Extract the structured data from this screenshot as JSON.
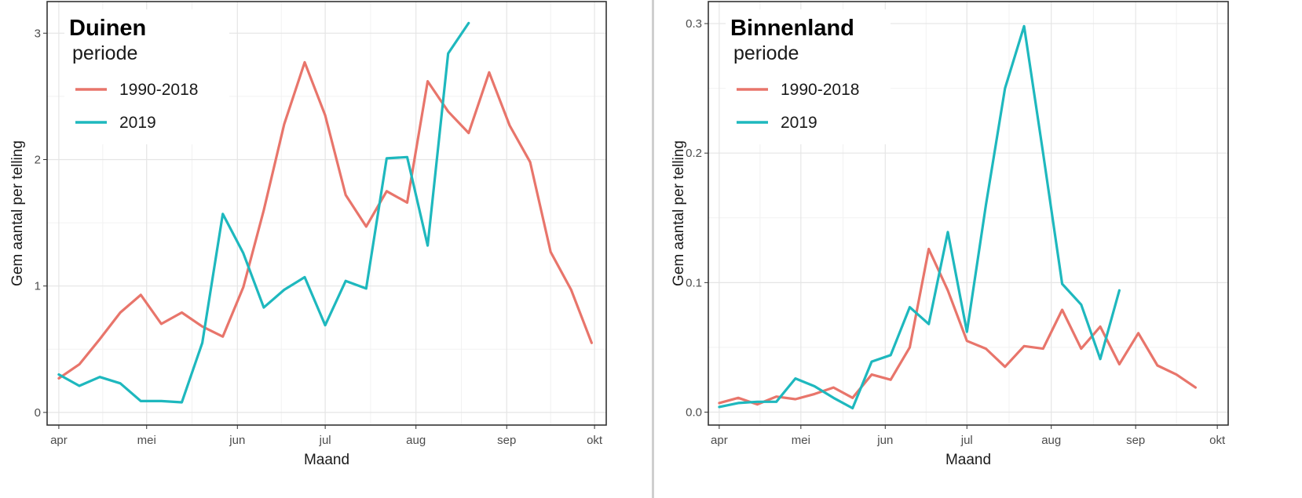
{
  "colors": {
    "series_1990_2018": "#E8756B",
    "series_2019": "#1EB8BE"
  },
  "chart_data": [
    {
      "type": "line",
      "title": "Duinen",
      "xlabel": "Maand",
      "ylabel": "Gem aantal per telling",
      "x_ticks": [
        "apr",
        "mei",
        "jun",
        "jul",
        "aug",
        "sep",
        "okt"
      ],
      "y_ticks": [
        "0",
        "1",
        "2",
        "3"
      ],
      "xlim": [
        "2019-03-28",
        "2019-10-05"
      ],
      "ylim": [
        -0.1,
        3.25
      ],
      "grid": true,
      "legend": {
        "title": "periode",
        "placement": "top-left"
      },
      "series": [
        {
          "name": "1990-2018",
          "points": [
            [
              "2019-04-01",
              0.27
            ],
            [
              "2019-04-08",
              0.38
            ],
            [
              "2019-04-15",
              0.58
            ],
            [
              "2019-04-22",
              0.79
            ],
            [
              "2019-04-29",
              0.93
            ],
            [
              "2019-05-06",
              0.7
            ],
            [
              "2019-05-13",
              0.79
            ],
            [
              "2019-05-20",
              0.68
            ],
            [
              "2019-05-27",
              0.6
            ],
            [
              "2019-06-03",
              0.99
            ],
            [
              "2019-06-10",
              1.6
            ],
            [
              "2019-06-17",
              2.28
            ],
            [
              "2019-06-24",
              2.77
            ],
            [
              "2019-07-01",
              2.35
            ],
            [
              "2019-07-08",
              1.72
            ],
            [
              "2019-07-15",
              1.47
            ],
            [
              "2019-07-22",
              1.75
            ],
            [
              "2019-07-29",
              1.66
            ],
            [
              "2019-08-05",
              2.62
            ],
            [
              "2019-08-12",
              2.38
            ],
            [
              "2019-08-19",
              2.21
            ],
            [
              "2019-08-26",
              2.69
            ],
            [
              "2019-09-02",
              2.27
            ],
            [
              "2019-09-09",
              1.98
            ],
            [
              "2019-09-16",
              1.27
            ],
            [
              "2019-09-23",
              0.97
            ],
            [
              "2019-09-30",
              0.55
            ]
          ]
        },
        {
          "name": "2019",
          "points": [
            [
              "2019-04-01",
              0.3
            ],
            [
              "2019-04-08",
              0.21
            ],
            [
              "2019-04-15",
              0.28
            ],
            [
              "2019-04-22",
              0.23
            ],
            [
              "2019-04-29",
              0.09
            ],
            [
              "2019-05-06",
              0.09
            ],
            [
              "2019-05-13",
              0.08
            ],
            [
              "2019-05-20",
              0.55
            ],
            [
              "2019-05-27",
              1.57
            ],
            [
              "2019-06-03",
              1.26
            ],
            [
              "2019-06-10",
              0.83
            ],
            [
              "2019-06-17",
              0.97
            ],
            [
              "2019-06-24",
              1.07
            ],
            [
              "2019-07-01",
              0.69
            ],
            [
              "2019-07-08",
              1.04
            ],
            [
              "2019-07-15",
              0.98
            ],
            [
              "2019-07-22",
              2.01
            ],
            [
              "2019-07-29",
              2.02
            ],
            [
              "2019-08-05",
              1.32
            ],
            [
              "2019-08-12",
              2.84
            ],
            [
              "2019-08-19",
              3.08
            ]
          ]
        }
      ]
    },
    {
      "type": "line",
      "title": "Binnenland",
      "xlabel": "Maand",
      "ylabel": "Gem aantal per telling",
      "x_ticks": [
        "apr",
        "mei",
        "jun",
        "jul",
        "aug",
        "sep",
        "okt"
      ],
      "y_ticks": [
        "0.0",
        "0.1",
        "0.2",
        "0.3"
      ],
      "xlim": [
        "2019-03-28",
        "2019-10-05"
      ],
      "ylim": [
        -0.01,
        0.317
      ],
      "grid": true,
      "legend": {
        "title": "periode",
        "placement": "top-left"
      },
      "series": [
        {
          "name": "1990-2018",
          "points": [
            [
              "2019-04-01",
              0.007
            ],
            [
              "2019-04-08",
              0.011
            ],
            [
              "2019-04-15",
              0.006
            ],
            [
              "2019-04-22",
              0.012
            ],
            [
              "2019-04-29",
              0.01
            ],
            [
              "2019-05-06",
              0.014
            ],
            [
              "2019-05-13",
              0.019
            ],
            [
              "2019-05-20",
              0.011
            ],
            [
              "2019-05-27",
              0.029
            ],
            [
              "2019-06-03",
              0.025
            ],
            [
              "2019-06-10",
              0.05
            ],
            [
              "2019-06-17",
              0.126
            ],
            [
              "2019-06-24",
              0.094
            ],
            [
              "2019-07-01",
              0.055
            ],
            [
              "2019-07-08",
              0.049
            ],
            [
              "2019-07-15",
              0.035
            ],
            [
              "2019-07-22",
              0.051
            ],
            [
              "2019-07-29",
              0.049
            ],
            [
              "2019-08-05",
              0.079
            ],
            [
              "2019-08-12",
              0.049
            ],
            [
              "2019-08-19",
              0.066
            ],
            [
              "2019-08-26",
              0.037
            ],
            [
              "2019-09-02",
              0.061
            ],
            [
              "2019-09-09",
              0.036
            ],
            [
              "2019-09-16",
              0.029
            ],
            [
              "2019-09-23",
              0.019
            ]
          ]
        },
        {
          "name": "2019",
          "points": [
            [
              "2019-04-01",
              0.004
            ],
            [
              "2019-04-08",
              0.007
            ],
            [
              "2019-04-15",
              0.008
            ],
            [
              "2019-04-22",
              0.008
            ],
            [
              "2019-04-29",
              0.026
            ],
            [
              "2019-05-06",
              0.02
            ],
            [
              "2019-05-13",
              0.011
            ],
            [
              "2019-05-20",
              0.003
            ],
            [
              "2019-05-27",
              0.039
            ],
            [
              "2019-06-03",
              0.044
            ],
            [
              "2019-06-10",
              0.081
            ],
            [
              "2019-06-17",
              0.068
            ],
            [
              "2019-06-24",
              0.139
            ],
            [
              "2019-07-01",
              0.062
            ],
            [
              "2019-07-08",
              0.16
            ],
            [
              "2019-07-15",
              0.25
            ],
            [
              "2019-07-22",
              0.298
            ],
            [
              "2019-07-29",
              0.2
            ],
            [
              "2019-08-05",
              0.099
            ],
            [
              "2019-08-12",
              0.083
            ],
            [
              "2019-08-19",
              0.041
            ],
            [
              "2019-08-26",
              0.094
            ]
          ]
        }
      ]
    }
  ]
}
